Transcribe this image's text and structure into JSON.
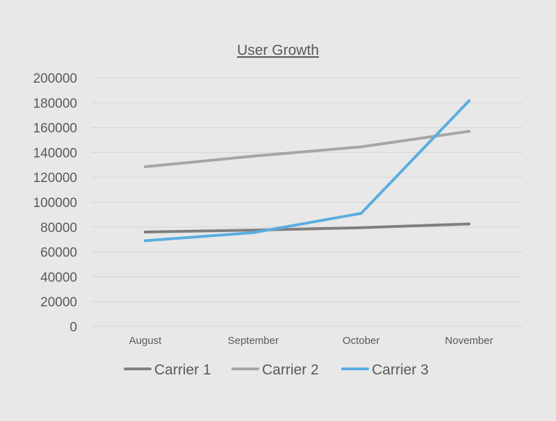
{
  "chart_data": {
    "type": "line",
    "title": "User Growth",
    "xlabel": "",
    "ylabel": "",
    "categories": [
      "August",
      "September",
      "October",
      "November"
    ],
    "ylim": [
      0,
      200000
    ],
    "yticks": [
      0,
      20000,
      40000,
      60000,
      80000,
      100000,
      120000,
      140000,
      160000,
      180000,
      200000
    ],
    "grid": true,
    "legend_position": "bottom",
    "series": [
      {
        "name": "Carrier 1",
        "color": "#7f7f7f",
        "values": [
          76000,
          77500,
          79500,
          82500
        ]
      },
      {
        "name": "Carrier 2",
        "color": "#a5a5a5",
        "values": [
          128500,
          137000,
          144500,
          157000
        ]
      },
      {
        "name": "Carrier 3",
        "color": "#5aade0",
        "values": [
          69000,
          75500,
          91000,
          181500
        ]
      }
    ]
  }
}
